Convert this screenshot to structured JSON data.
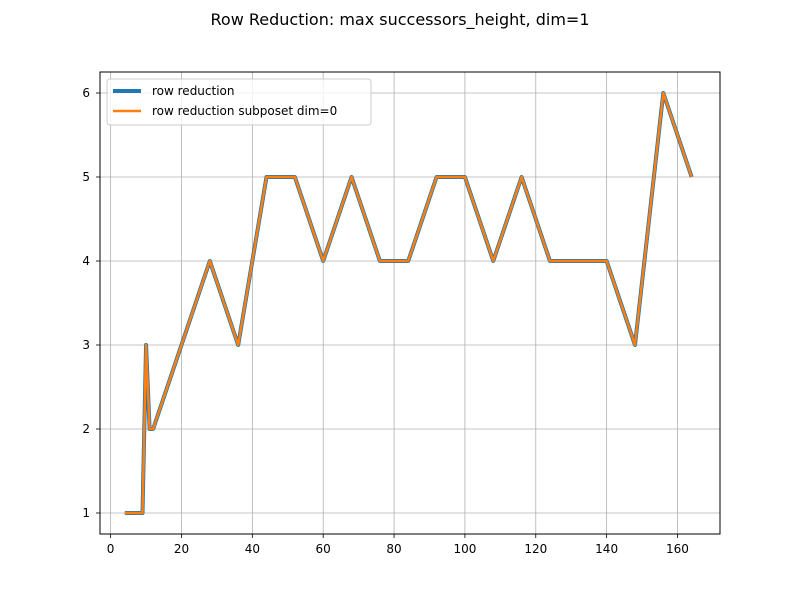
{
  "chart_data": {
    "type": "line",
    "title": "Row Reduction: max successors_height, dim=1",
    "xlabel": "",
    "ylabel": "",
    "xlim": [
      -3.0,
      172.0
    ],
    "ylim": [
      0.75,
      6.25
    ],
    "xticks": [
      0,
      20,
      40,
      60,
      80,
      100,
      120,
      140,
      160
    ],
    "yticks": [
      1,
      2,
      3,
      4,
      5,
      6
    ],
    "grid": true,
    "legend_position": "upper-left",
    "x": [
      4,
      8,
      9,
      10,
      11,
      12,
      20,
      28,
      36,
      44,
      52,
      60,
      68,
      76,
      84,
      92,
      100,
      108,
      116,
      124,
      132,
      140,
      148,
      156,
      164
    ],
    "series": [
      {
        "name": "row reduction",
        "color": "#1f77b4",
        "values": [
          1,
          1,
          1,
          3,
          2,
          2,
          3,
          4,
          3,
          5,
          5,
          4,
          5,
          4,
          4,
          5,
          5,
          4,
          5,
          4,
          4,
          4,
          3,
          6,
          5
        ]
      },
      {
        "name": "row reduction subposet dim=0",
        "color": "#ff7f0e",
        "values": [
          1,
          1,
          1,
          3,
          2,
          2,
          3,
          4,
          3,
          5,
          5,
          4,
          5,
          4,
          4,
          5,
          5,
          4,
          5,
          4,
          4,
          4,
          3,
          6,
          5
        ]
      }
    ]
  }
}
